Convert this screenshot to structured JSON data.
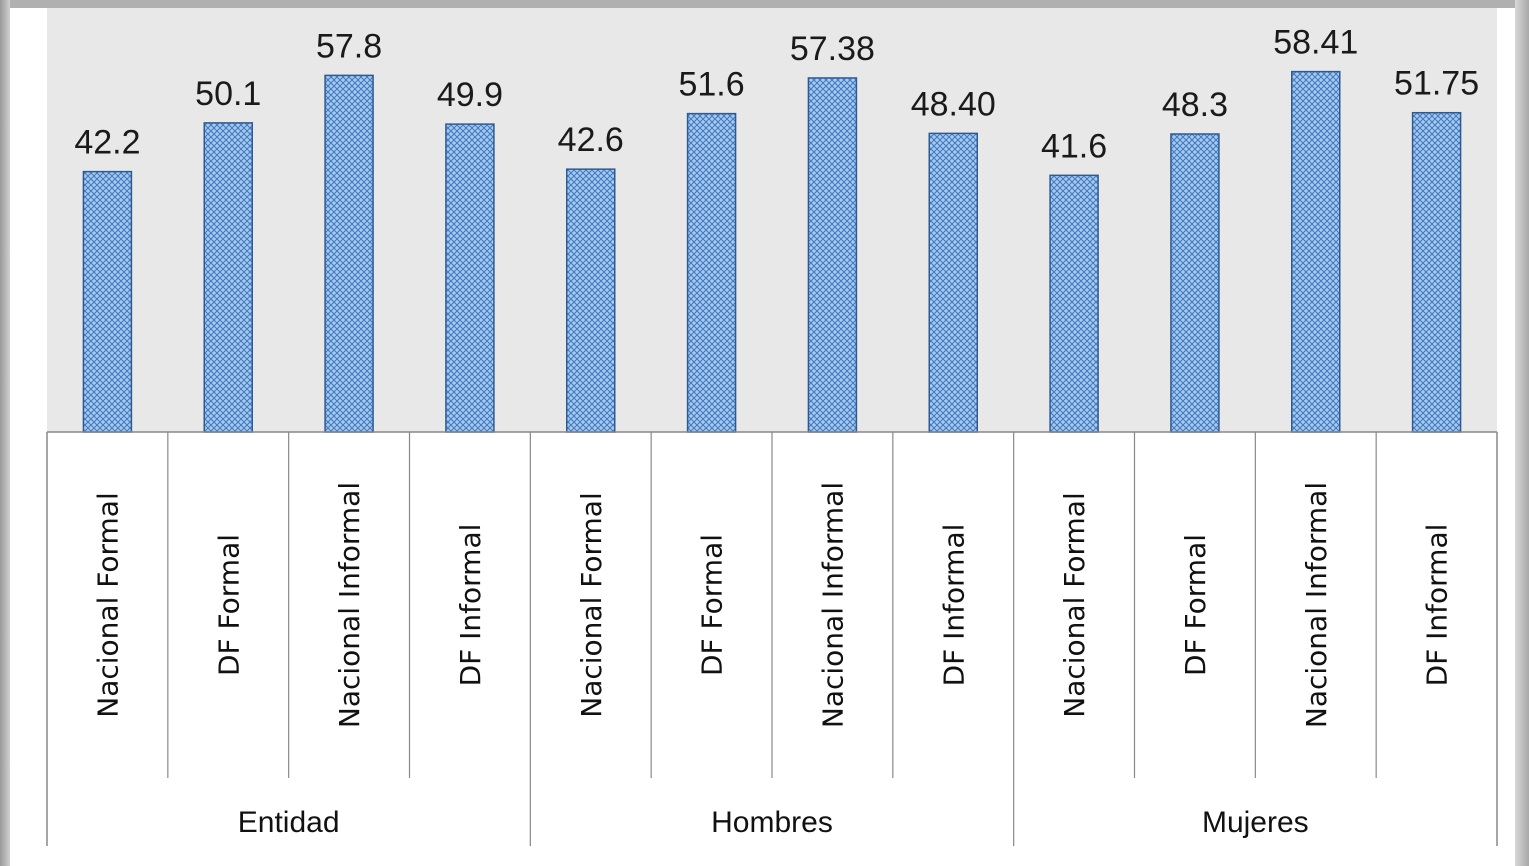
{
  "chart_data": {
    "type": "bar",
    "title": "",
    "xlabel": "",
    "ylabel": "",
    "ylim": [
      0,
      65
    ],
    "grid": false,
    "legend": "none",
    "groups": [
      "Entidad",
      "Hombres",
      "Mujeres"
    ],
    "categories": [
      "Nacional Formal",
      "DF Formal",
      "Nacional Informal",
      "DF Informal",
      "Nacional Formal",
      "DF Formal",
      "Nacional Informal",
      "DF Informal",
      "Nacional Formal",
      "DF Formal",
      "Nacional Informal",
      "DF Informal"
    ],
    "values": [
      42.2,
      50.1,
      57.8,
      49.9,
      42.6,
      51.6,
      57.38,
      48.4,
      41.6,
      48.3,
      58.41,
      51.75
    ],
    "value_labels": [
      "42.2",
      "50.1",
      "57.8",
      "49.9",
      "42.6",
      "51.6",
      "57.38",
      "48.40",
      "41.6",
      "48.3",
      "58.41",
      "51.75"
    ]
  },
  "colors": {
    "plot_background": "#e8e8e8",
    "bar_fill": "#a9c9ec",
    "bar_hatch": "#3d79c2",
    "bar_border": "#2e5a94",
    "axis_lines": "#888888"
  }
}
